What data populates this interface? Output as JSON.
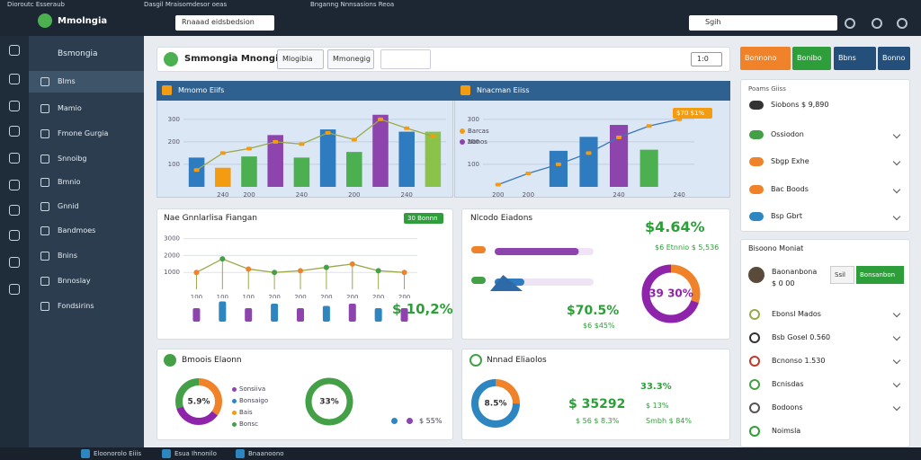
{
  "browser": {
    "tabs": [
      "Dioroutc Esseraub",
      "Dasgil Mraisomdesor oeas",
      "Bnganng Nnnsasions Reoa"
    ],
    "address": "Rnaaad eidsbedsion",
    "search": "Sgih"
  },
  "sidebar": {
    "brand": "Mmolngia",
    "section": "Bsmongia",
    "items": [
      "Blms",
      "Mamio",
      "Fmone Gurgia",
      "Snnoibg",
      "Bmnio",
      "Gnnid",
      "Bandmoes",
      "Bnins",
      "Bnnoslay",
      "Fondsirins"
    ]
  },
  "header": {
    "title": "Smmongia Mnongia",
    "buttons": [
      "Mlogibia",
      "Mmonegig"
    ],
    "select": "1:0"
  },
  "charts": [
    {
      "type": "bar",
      "title": "Mmomo Eiifs",
      "categories": [
        null,
        "240",
        "200",
        null,
        "240",
        null,
        "200",
        null,
        "240",
        null
      ],
      "values": [
        130,
        85,
        135,
        230,
        130,
        255,
        155,
        320,
        245,
        245
      ],
      "colors": [
        "#2e7bbf",
        "#f39c12",
        "#4caf50",
        "#8e44ad",
        "#4caf50",
        "#2e7bbf",
        "#4caf50",
        "#8e44ad",
        "#2e7bbf",
        "#8bc34a"
      ],
      "line": [
        75,
        150,
        170,
        200,
        190,
        240,
        210,
        300,
        260,
        225
      ],
      "line_color": "#9aa84a",
      "ylim": [
        0,
        335
      ],
      "yticks": [
        100,
        200,
        300
      ]
    },
    {
      "type": "bar",
      "title": "Nnacman Eiiss",
      "categories": [
        "200",
        "200",
        null,
        null,
        "240",
        null,
        "240"
      ],
      "values": [
        null,
        null,
        160,
        222,
        275,
        165,
        null
      ],
      "colors": [
        "#2e7bbf",
        "#2e7bbf",
        "#2e7bbf",
        "#2e7bbf",
        "#8e44ad",
        "#4caf50",
        "#2e7bbf"
      ],
      "line": [
        10,
        60,
        100,
        150,
        220,
        270,
        300
      ],
      "line_color": "#3a78b8",
      "annotation": "$70 $1%",
      "legend": [
        "Barcas",
        "Nonos"
      ],
      "ylim": [
        0,
        335
      ],
      "yticks": [
        100,
        200,
        300
      ]
    },
    {
      "type": "line",
      "title": "Nae Gnnlarlisa Fiangan",
      "badge": "30 Bonnn",
      "categories": [
        "100",
        "100",
        "100",
        "200",
        "200",
        "200",
        "200",
        "200",
        "200"
      ],
      "values": [
        1000,
        1800,
        1200,
        1000,
        1100,
        1300,
        1500,
        1100,
        1000
      ],
      "bar_values": [
        30,
        45,
        30,
        40,
        30,
        35,
        40,
        30,
        30
      ],
      "line_color": "#9aa84a",
      "value_label": "$ 10,2%",
      "ylim": [
        0,
        3300
      ],
      "yticks": [
        1000,
        2000,
        3000
      ]
    }
  ],
  "metrics": {
    "title": "Nlcodo Eiadons",
    "big": "$4.64%",
    "sub": "$6 Etnnio $ 5,536",
    "pct": "$70.5%",
    "pct_sub": "$6 $45%",
    "progress": [
      {
        "value": 85,
        "color": "#8e44ad"
      },
      {
        "value": 30,
        "color": "#2e7bbf"
      }
    ],
    "donut": {
      "label": "39 30%",
      "segments": [
        {
          "value": 30,
          "color": "#f0822a"
        },
        {
          "value": 70,
          "color": "#8e24aa"
        }
      ]
    }
  },
  "bottom_left": {
    "title": "Bmoois Elaonn",
    "legend": [
      "Sonsiiva",
      "Bonsaigo",
      "Bais",
      "Bonsc"
    ],
    "donut1": {
      "label": "5.9%",
      "segments": [
        {
          "value": 35,
          "color": "#f0822a"
        },
        {
          "value": 35,
          "color": "#8e24aa"
        },
        {
          "value": 30,
          "color": "#43a047"
        }
      ]
    },
    "donut2": {
      "label": "33%",
      "segments": [
        {
          "value": 100,
          "color": "#43a047"
        }
      ]
    },
    "note": "$ 55%"
  },
  "bottom_right": {
    "title": "Nnnad Eliaolos",
    "donut": {
      "label": "8.5%",
      "segments": [
        {
          "value": 25,
          "color": "#f0822a"
        },
        {
          "value": 75,
          "color": "#2e86c1"
        }
      ]
    },
    "big": "$ 35292",
    "sub": "$ 56 $ 8.3%",
    "pct": "33.3%",
    "pct2": "$ 13%",
    "pct3": "Smbh $ 84%"
  },
  "right": {
    "buttons": [
      "Bonnono",
      "Bonibo",
      "Bbns",
      "Bonno"
    ],
    "card1_title": "Poams Giiss",
    "card1_items": [
      "Siobons $ 9,890",
      "Ossiodon",
      "Sbgp Exhe",
      "Bac Boods",
      "Bsp Gbrt"
    ],
    "card2_title": "Bisoono Moniat",
    "card2_buttons": [
      "Ssil",
      "Bonsanbon"
    ],
    "profile": [
      "Baonanbona",
      "$ 0 00"
    ],
    "card2_items": [
      "Ebonsl Mados",
      "Bsb Gosel 0.560",
      "Bcnonso 1.530",
      "Bcnisdas",
      "Bodoons",
      "Noimsla"
    ]
  },
  "taskbar": [
    "Eloonorolo Eiiis",
    "Esua Ihnonilo",
    "Bnaanoono"
  ]
}
